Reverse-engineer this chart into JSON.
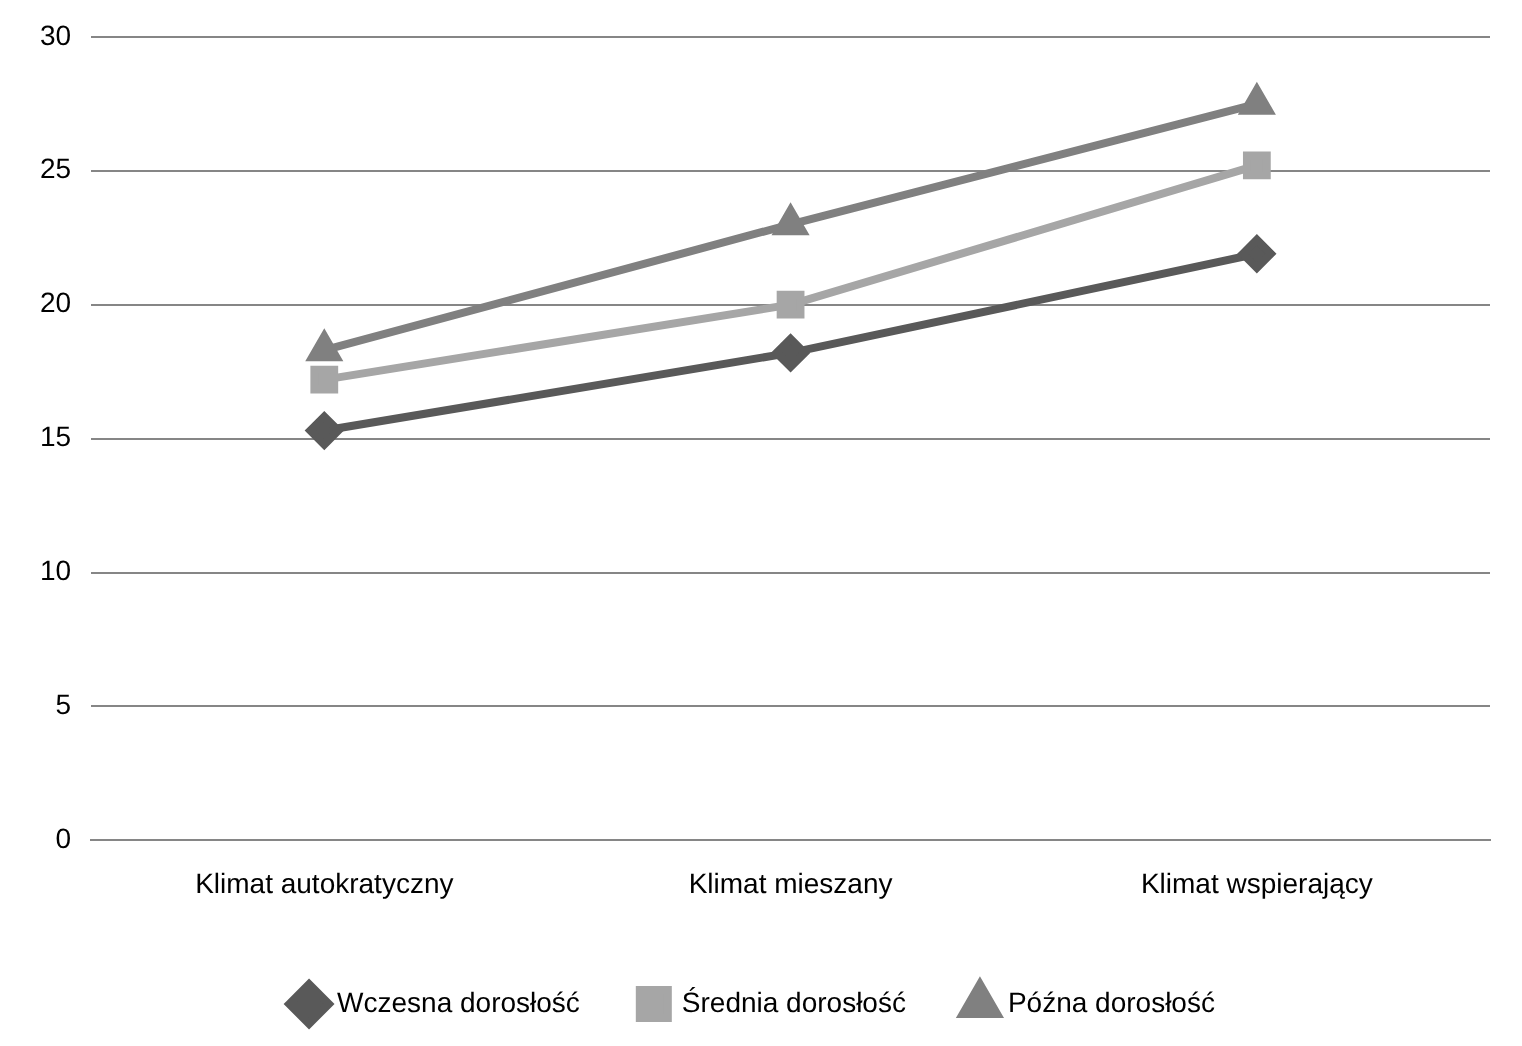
{
  "chart_data": {
    "type": "line",
    "categories": [
      "Klimat autokratyczny",
      "Klimat mieszany",
      "Klimat wspierający"
    ],
    "series": [
      {
        "name": "Wczesna dorosłość",
        "color": "#595959",
        "marker": "diamond",
        "values": [
          15.3,
          18.2,
          21.9
        ]
      },
      {
        "name": "Średnia dorosłość",
        "color": "#a6a6a6",
        "marker": "square",
        "values": [
          17.2,
          20.0,
          25.2
        ]
      },
      {
        "name": "Późna dorosłość",
        "color": "#808080",
        "marker": "triangle",
        "values": [
          18.3,
          23.0,
          27.5
        ]
      }
    ],
    "ylim": [
      0,
      30
    ],
    "yticks": [
      0,
      5,
      10,
      15,
      20,
      25,
      30
    ],
    "grid": "y",
    "legend": "bottom",
    "line_style": "solid"
  }
}
